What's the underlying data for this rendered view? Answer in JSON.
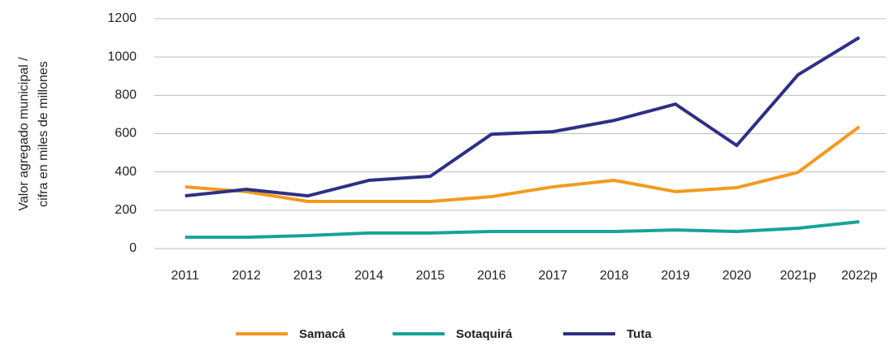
{
  "chart_data": {
    "type": "line",
    "ylabel": [
      "Valor agregado municipal /",
      "cifra en miles de millones"
    ],
    "categories": [
      "2011",
      "2012",
      "2013",
      "2014",
      "2015",
      "2016",
      "2017",
      "2018",
      "2019",
      "2020",
      "2021p",
      "2022p"
    ],
    "series": [
      {
        "name": "Samacá",
        "color": "#f39a1e",
        "values": [
          322,
          297,
          246,
          246,
          246,
          271,
          322,
          356,
          297,
          318,
          398,
          636
        ]
      },
      {
        "name": "Sotaquirá",
        "color": "#17a398",
        "values": [
          59,
          59,
          68,
          81,
          81,
          89,
          89,
          89,
          97,
          89,
          106,
          140
        ]
      },
      {
        "name": "Tuta",
        "color": "#2e2f85",
        "values": [
          275,
          309,
          275,
          356,
          377,
          597,
          610,
          669,
          754,
          538,
          907,
          1102
        ]
      }
    ],
    "ylim": [
      0,
      1200
    ],
    "yticks": [
      0,
      200,
      400,
      600,
      800,
      1000,
      1200
    ],
    "grid": true
  }
}
